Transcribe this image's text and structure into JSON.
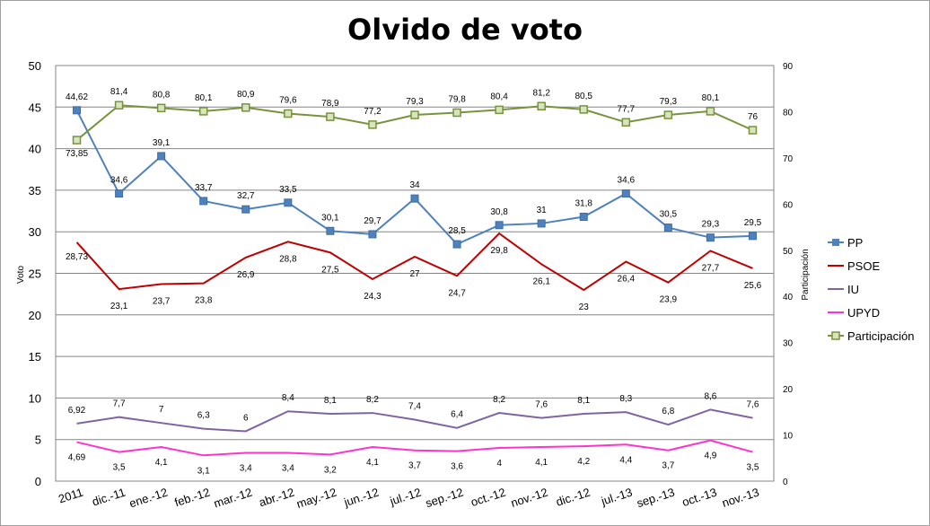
{
  "chart_data": {
    "type": "line",
    "title": "Olvido de voto",
    "ylabel": "Voto",
    "y2label": "Participación",
    "ylim": [
      0,
      50
    ],
    "y2lim": [
      0,
      90
    ],
    "yticks": [
      "0",
      "5",
      "10",
      "15",
      "20",
      "25",
      "30",
      "35",
      "40",
      "45",
      "50"
    ],
    "y2ticks": [
      "0",
      "10",
      "20",
      "30",
      "40",
      "50",
      "60",
      "70",
      "80",
      "90"
    ],
    "categories": [
      "2011",
      "dic.-11",
      "ene.-12",
      "feb.-12",
      "mar.-12",
      "abr.-12",
      "may.-12",
      "jun.-12",
      "jul.-12",
      "sep.-12",
      "oct.-12",
      "nov.-12",
      "dic.-12",
      "jul.-13",
      "sep.-13",
      "oct.-13",
      "nov.-13"
    ],
    "series": [
      {
        "name": "PP",
        "axis": "left",
        "color": "#4f81bd",
        "marker": "square",
        "values": [
          44.62,
          34.6,
          39.1,
          33.7,
          32.7,
          33.5,
          30.1,
          29.7,
          34,
          28.5,
          30.8,
          31,
          31.8,
          34.6,
          30.5,
          29.3,
          29.5
        ],
        "labels": [
          "44,62",
          "34,6",
          "39,1",
          "33,7",
          "32,7",
          "33,5",
          "30,1",
          "29,7",
          "34",
          "28,5",
          "30,8",
          "31",
          "31,8",
          "34,6",
          "30,5",
          "29,3",
          "29,5"
        ]
      },
      {
        "name": "PSOE",
        "axis": "left",
        "color": "#c00000",
        "marker": "none",
        "values": [
          28.73,
          23.1,
          23.7,
          23.8,
          26.9,
          28.8,
          27.5,
          24.3,
          27,
          24.7,
          29.8,
          26.1,
          23,
          26.4,
          23.9,
          27.7,
          25.6
        ],
        "labels": [
          "28,73",
          "23,1",
          "23,7",
          "23,8",
          "26,9",
          "28,8",
          "27,5",
          "24,3",
          "27",
          "24,7",
          "29,8",
          "26,1",
          "23",
          "26,4",
          "23,9",
          "27,7",
          "25,6"
        ]
      },
      {
        "name": "IU",
        "axis": "left",
        "color": "#8064a2",
        "marker": "none",
        "values": [
          6.92,
          7.7,
          7,
          6.3,
          6,
          8.4,
          8.1,
          8.2,
          7.4,
          6.4,
          8.2,
          7.6,
          8.1,
          8.3,
          6.8,
          8.6,
          7.6
        ],
        "labels": [
          "6,92",
          "7,7",
          "7",
          "6,3",
          "6",
          "8,4",
          "8,1",
          "8,2",
          "7,4",
          "6,4",
          "8,2",
          "7,6",
          "8,1",
          "8,3",
          "6,8",
          "8,6",
          "7,6"
        ]
      },
      {
        "name": "UPYD",
        "axis": "left",
        "color": "#ff33cc",
        "marker": "none",
        "values": [
          4.69,
          3.5,
          4.1,
          3.1,
          3.4,
          3.4,
          3.2,
          4.1,
          3.7,
          3.6,
          4,
          4.1,
          4.2,
          4.4,
          3.7,
          4.9,
          3.5
        ],
        "labels": [
          "4,69",
          "3,5",
          "4,1",
          "3,1",
          "3,4",
          "3,4",
          "3,2",
          "4,1",
          "3,7",
          "3,6",
          "4",
          "4,1",
          "4,2",
          "4,4",
          "3,7",
          "4,9",
          "3,5"
        ]
      },
      {
        "name": "Participación",
        "axis": "right",
        "color": "#77933c",
        "marker": "square-light",
        "values": [
          73.85,
          81.4,
          80.8,
          80.1,
          80.9,
          79.6,
          78.9,
          77.2,
          79.3,
          79.8,
          80.4,
          81.2,
          80.5,
          77.7,
          79.3,
          80.1,
          76
        ],
        "labels": [
          "73,85",
          "81,4",
          "80,8",
          "80,1",
          "80,9",
          "79,6",
          "78,9",
          "77,2",
          "79,3",
          "79,8",
          "80,4",
          "81,2",
          "80,5",
          "77,7",
          "79,3",
          "80,1",
          "76"
        ]
      }
    ],
    "legend_position": "right",
    "grid": true
  }
}
